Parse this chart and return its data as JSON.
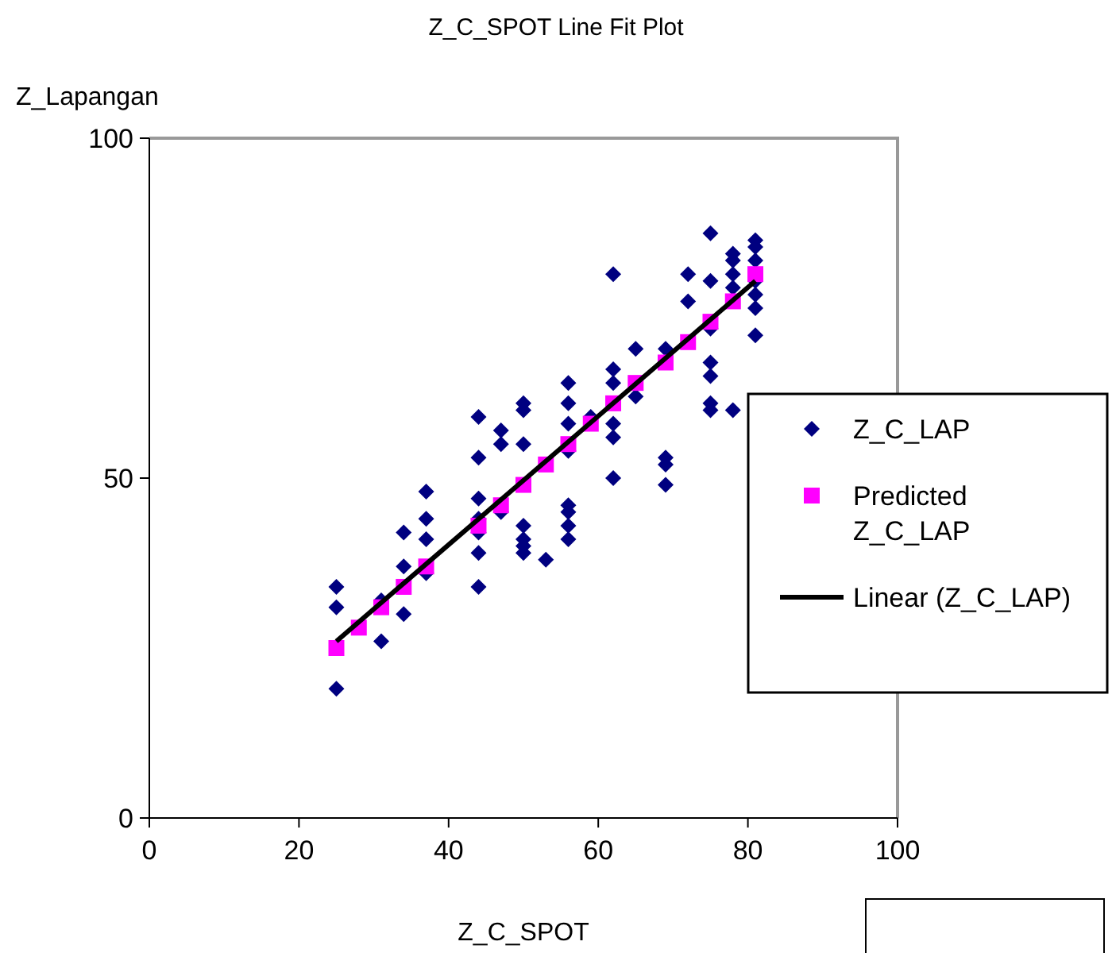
{
  "chart_data": {
    "type": "scatter",
    "title": "Z_C_SPOT Line Fit  Plot",
    "xlabel": "Z_C_SPOT",
    "ylabel": "Z_Lapangan",
    "xlim": [
      0,
      100
    ],
    "xticks": [
      0,
      20,
      40,
      60,
      80,
      100
    ],
    "ylim": [
      0,
      100
    ],
    "yticks": [
      0,
      50,
      100
    ],
    "legend": "right",
    "series": [
      {
        "name": "Z_C_LAP",
        "color": "#000080",
        "marker": "diamond",
        "x": [
          25,
          25,
          25,
          31,
          31,
          34,
          34,
          34,
          37,
          37,
          37,
          37,
          44,
          44,
          44,
          44,
          44,
          44,
          44,
          47,
          47,
          47,
          50,
          50,
          50,
          50,
          50,
          50,
          50,
          53,
          56,
          56,
          56,
          56,
          56,
          56,
          56,
          56,
          59,
          62,
          62,
          62,
          62,
          62,
          62,
          65,
          65,
          69,
          69,
          69,
          69,
          72,
          72,
          75,
          75,
          75,
          75,
          75,
          75,
          75,
          78,
          78,
          78,
          78,
          78,
          81,
          81,
          81,
          81,
          81,
          81,
          81
        ],
        "values": [
          34,
          31,
          19,
          32,
          26,
          42,
          37,
          30,
          48,
          44,
          41,
          36,
          59,
          53,
          47,
          44,
          42,
          39,
          34,
          57,
          55,
          45,
          61,
          60,
          55,
          43,
          41,
          40,
          39,
          38,
          64,
          61,
          58,
          54,
          46,
          45,
          43,
          41,
          59,
          80,
          66,
          64,
          58,
          56,
          50,
          69,
          62,
          69,
          53,
          52,
          49,
          80,
          76,
          86,
          79,
          67,
          65,
          61,
          60,
          72,
          83,
          82,
          80,
          78,
          60,
          85,
          84,
          82,
          79,
          77,
          75,
          71
        ]
      },
      {
        "name": "Predicted Z_C_LAP",
        "color": "#ff00ff",
        "marker": "square",
        "x": [
          25,
          28,
          31,
          34,
          37,
          44,
          47,
          50,
          53,
          56,
          59,
          62,
          65,
          69,
          72,
          75,
          78,
          81
        ],
        "values": [
          25,
          28,
          31,
          34,
          37,
          43,
          46,
          49,
          52,
          55,
          58,
          61,
          64,
          67,
          70,
          73,
          76,
          80
        ]
      },
      {
        "name": "Linear (Z_C_LAP)",
        "type": "line",
        "color": "#000000",
        "marker": "none",
        "x": [
          25,
          81
        ],
        "values": [
          26,
          79
        ]
      }
    ]
  }
}
